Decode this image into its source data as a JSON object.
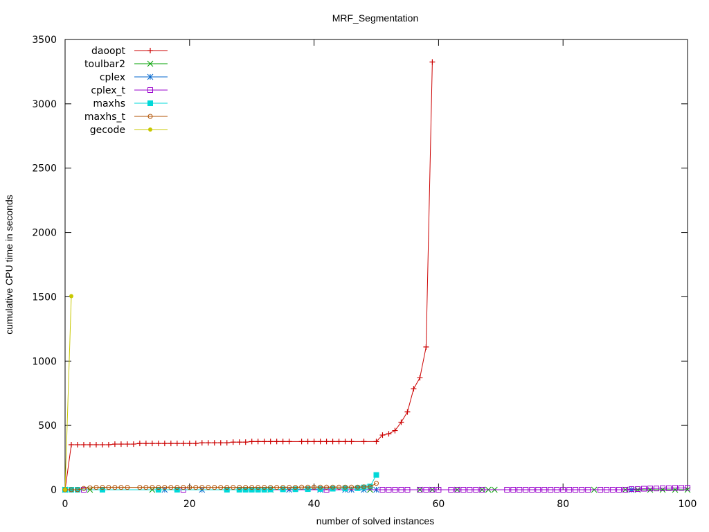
{
  "chart_data": {
    "type": "line",
    "title": "MRF_Segmentation",
    "xlabel": "number of solved instances",
    "ylabel": "cumulative CPU time in seconds",
    "xlim": [
      0,
      100
    ],
    "ylim": [
      0,
      3500
    ],
    "xticks": [
      0,
      20,
      40,
      60,
      80,
      100
    ],
    "yticks": [
      0,
      500,
      1000,
      1500,
      2000,
      2500,
      3000,
      3500
    ],
    "grid": false,
    "legend_position": "top-left",
    "series": [
      {
        "name": "daoopt",
        "color": "#cc0000",
        "marker": "plus",
        "x": [
          0,
          1,
          2,
          3,
          4,
          5,
          6,
          7,
          8,
          9,
          10,
          11,
          12,
          13,
          14,
          15,
          16,
          17,
          18,
          19,
          20,
          21,
          22,
          23,
          24,
          25,
          26,
          27,
          28,
          29,
          30,
          31,
          32,
          33,
          34,
          35,
          36,
          38,
          39,
          40,
          41,
          42,
          43,
          44,
          45,
          46,
          48,
          50,
          51,
          52,
          53,
          54,
          55,
          56,
          57,
          58,
          59
        ],
        "y": [
          0,
          350,
          350,
          350,
          350,
          350,
          350,
          350,
          355,
          355,
          355,
          355,
          360,
          360,
          360,
          360,
          360,
          360,
          360,
          360,
          360,
          360,
          365,
          365,
          365,
          365,
          365,
          370,
          370,
          370,
          375,
          375,
          375,
          375,
          375,
          375,
          375,
          375,
          375,
          375,
          375,
          375,
          375,
          375,
          375,
          375,
          375,
          375,
          425,
          435,
          460,
          525,
          605,
          785,
          870,
          1110,
          3325
        ]
      },
      {
        "name": "toulbar2",
        "color": "#00a000",
        "marker": "x",
        "x": [
          0,
          4,
          14,
          33,
          49,
          57,
          59,
          63,
          67,
          68,
          69,
          85,
          90,
          92,
          94,
          96,
          98,
          100
        ],
        "y": [
          0,
          0,
          0,
          0,
          0,
          0,
          0,
          0,
          0,
          0,
          0,
          0,
          0,
          0,
          0,
          0,
          0,
          0
        ]
      },
      {
        "name": "cplex",
        "color": "#0066cc",
        "marker": "star",
        "x": [
          16,
          22,
          36,
          41,
          45,
          46,
          48,
          50,
          91
        ],
        "y": [
          0,
          0,
          0,
          0,
          0,
          0,
          0,
          0,
          0
        ]
      },
      {
        "name": "cplex_t",
        "color": "#9900cc",
        "marker": "open-square",
        "x": [
          3,
          19,
          42,
          51,
          52,
          53,
          54,
          55,
          57,
          58,
          59,
          60,
          62,
          63,
          64,
          65,
          66,
          67,
          71,
          72,
          73,
          74,
          75,
          76,
          77,
          78,
          79,
          80,
          81,
          82,
          83,
          84,
          86,
          87,
          88,
          89,
          90,
          91,
          92,
          93,
          94,
          95,
          96,
          97,
          98,
          99,
          100
        ],
        "y": [
          0,
          0,
          0,
          0,
          0,
          0,
          0,
          0,
          0,
          0,
          0,
          0,
          0,
          0,
          0,
          0,
          0,
          0,
          0,
          0,
          0,
          0,
          0,
          0,
          0,
          0,
          0,
          0,
          0,
          0,
          0,
          0,
          0,
          0,
          0,
          0,
          0,
          5,
          5,
          8,
          10,
          10,
          12,
          12,
          14,
          14,
          15
        ]
      },
      {
        "name": "maxhs",
        "color": "#00d8d8",
        "marker": "filled-square",
        "x": [
          0,
          1,
          2,
          6,
          15,
          18,
          26,
          28,
          29,
          30,
          31,
          32,
          33,
          35,
          37,
          39,
          41,
          43,
          45,
          47,
          48,
          49,
          50
        ],
        "y": [
          0,
          0,
          0,
          0,
          0,
          0,
          0,
          0,
          0,
          0,
          0,
          0,
          2,
          3,
          4,
          5,
          6,
          8,
          10,
          12,
          18,
          25,
          115
        ]
      },
      {
        "name": "maxhs_t",
        "color": "#b05000",
        "marker": "open-circle",
        "x": [
          0,
          1,
          2,
          3,
          4,
          5,
          6,
          7,
          8,
          9,
          10,
          12,
          13,
          14,
          15,
          16,
          17,
          18,
          19,
          20,
          21,
          22,
          23,
          24,
          25,
          26,
          27,
          28,
          29,
          30,
          31,
          32,
          33,
          34,
          35,
          36,
          37,
          38,
          39,
          40,
          41,
          42,
          43,
          44,
          45,
          46,
          47,
          48,
          49,
          50
        ],
        "y": [
          0,
          0,
          0,
          10,
          15,
          18,
          18,
          18,
          18,
          18,
          18,
          18,
          18,
          18,
          18,
          18,
          18,
          18,
          18,
          18,
          18,
          18,
          18,
          18,
          18,
          18,
          18,
          18,
          18,
          18,
          18,
          18,
          18,
          18,
          18,
          18,
          18,
          20,
          20,
          20,
          20,
          20,
          20,
          20,
          20,
          20,
          20,
          22,
          22,
          50
        ]
      },
      {
        "name": "gecode",
        "color": "#c8c800",
        "marker": "filled-circle",
        "x": [
          0,
          1
        ],
        "y": [
          0,
          1505
        ]
      }
    ]
  }
}
